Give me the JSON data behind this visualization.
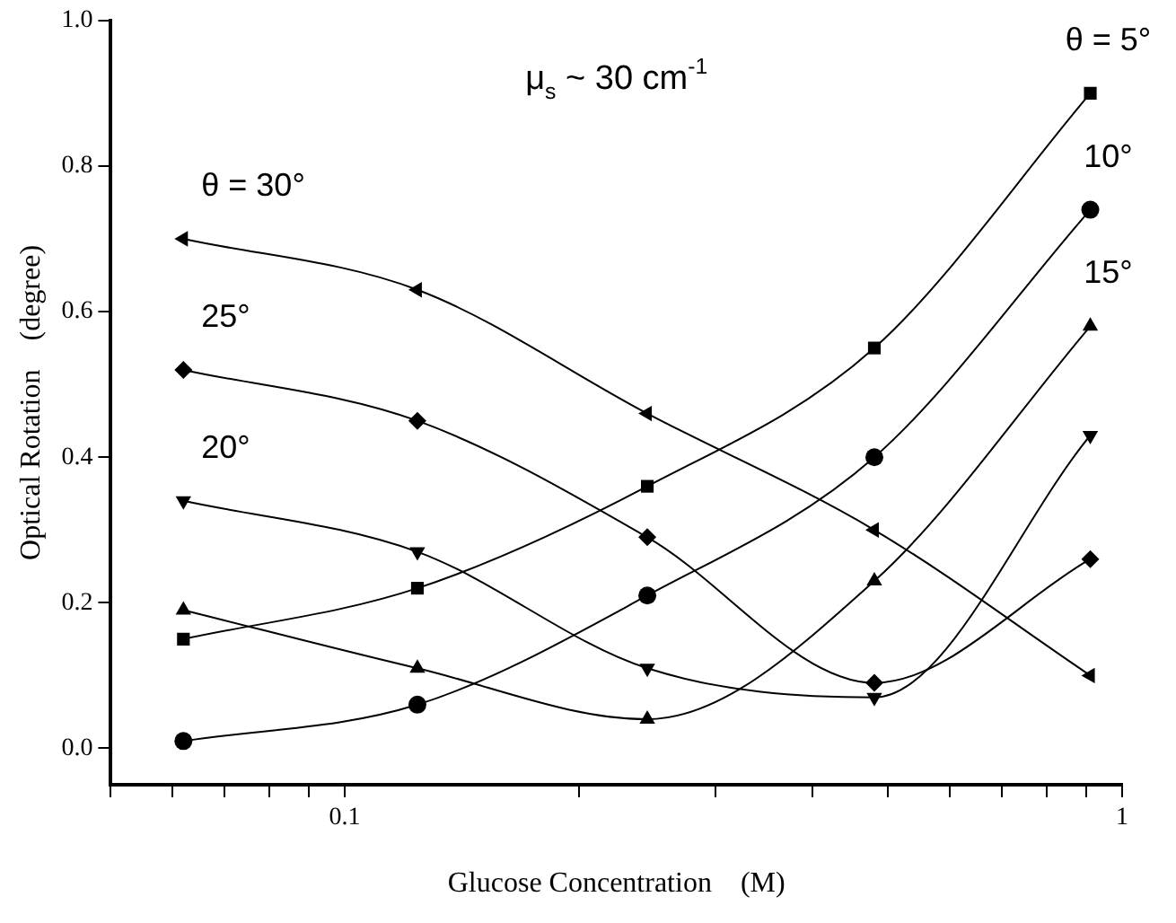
{
  "chart_data": {
    "type": "line",
    "title": "μ$_{s}$ ~ 30 cm$^{-1}$",
    "xlabel": "Glucose Concentration    (M)",
    "ylabel": "Optical Rotation    (degree)",
    "x": [
      0.062,
      0.124,
      0.245,
      0.48,
      0.91
    ],
    "log": "x",
    "xlim": [
      0.05,
      1
    ],
    "xticks": [
      {
        "value": 0.05,
        "label": null
      },
      {
        "value": 0.06,
        "label": null
      },
      {
        "value": 0.07,
        "label": null
      },
      {
        "value": 0.08,
        "label": null
      },
      {
        "value": 0.09,
        "label": null
      },
      0.1,
      {
        "value": 0.2,
        "label": null
      },
      {
        "value": 0.3,
        "label": null
      },
      {
        "value": 0.4,
        "label": null
      },
      {
        "value": 0.5,
        "label": null
      },
      {
        "value": 0.6,
        "label": null
      },
      {
        "value": 0.7,
        "label": null
      },
      {
        "value": 0.8,
        "label": null
      },
      {
        "value": 0.9,
        "label": null
      },
      1
    ],
    "ylim": [
      -0.05,
      1.0
    ],
    "yticks": [
      {
        "value": 0,
        "label": "0.0"
      },
      0.2,
      0.4,
      0.6,
      0.8,
      {
        "value": 1,
        "label": "1.0"
      }
    ],
    "grid": false,
    "legend": false,
    "line_style": "solid",
    "series": [
      {
        "name": "θ = 5°",
        "color": "#000000",
        "marker": "square",
        "values": [
          0.15,
          0.22,
          0.36,
          0.55,
          0.9
        ]
      },
      {
        "name": "10°",
        "color": "#000000",
        "marker": "circle",
        "values": [
          0.01,
          0.06,
          0.21,
          0.4,
          0.74
        ]
      },
      {
        "name": "15°",
        "color": "#000000",
        "marker": "triangle",
        "values": [
          0.19,
          0.11,
          0.04,
          0.23,
          0.58
        ]
      },
      {
        "name": "20°",
        "color": "#000000",
        "marker": "triangle-down",
        "values": [
          0.34,
          0.27,
          0.11,
          0.07,
          0.43
        ]
      },
      {
        "name": "25°",
        "color": "#000000",
        "marker": "diamond",
        "values": [
          0.52,
          0.45,
          0.29,
          0.09,
          0.26
        ]
      },
      {
        "name": "θ = 30°",
        "color": "#000000",
        "marker": "triangle-left",
        "values": [
          0.7,
          0.63,
          0.46,
          0.3,
          0.1
        ]
      }
    ]
  }
}
